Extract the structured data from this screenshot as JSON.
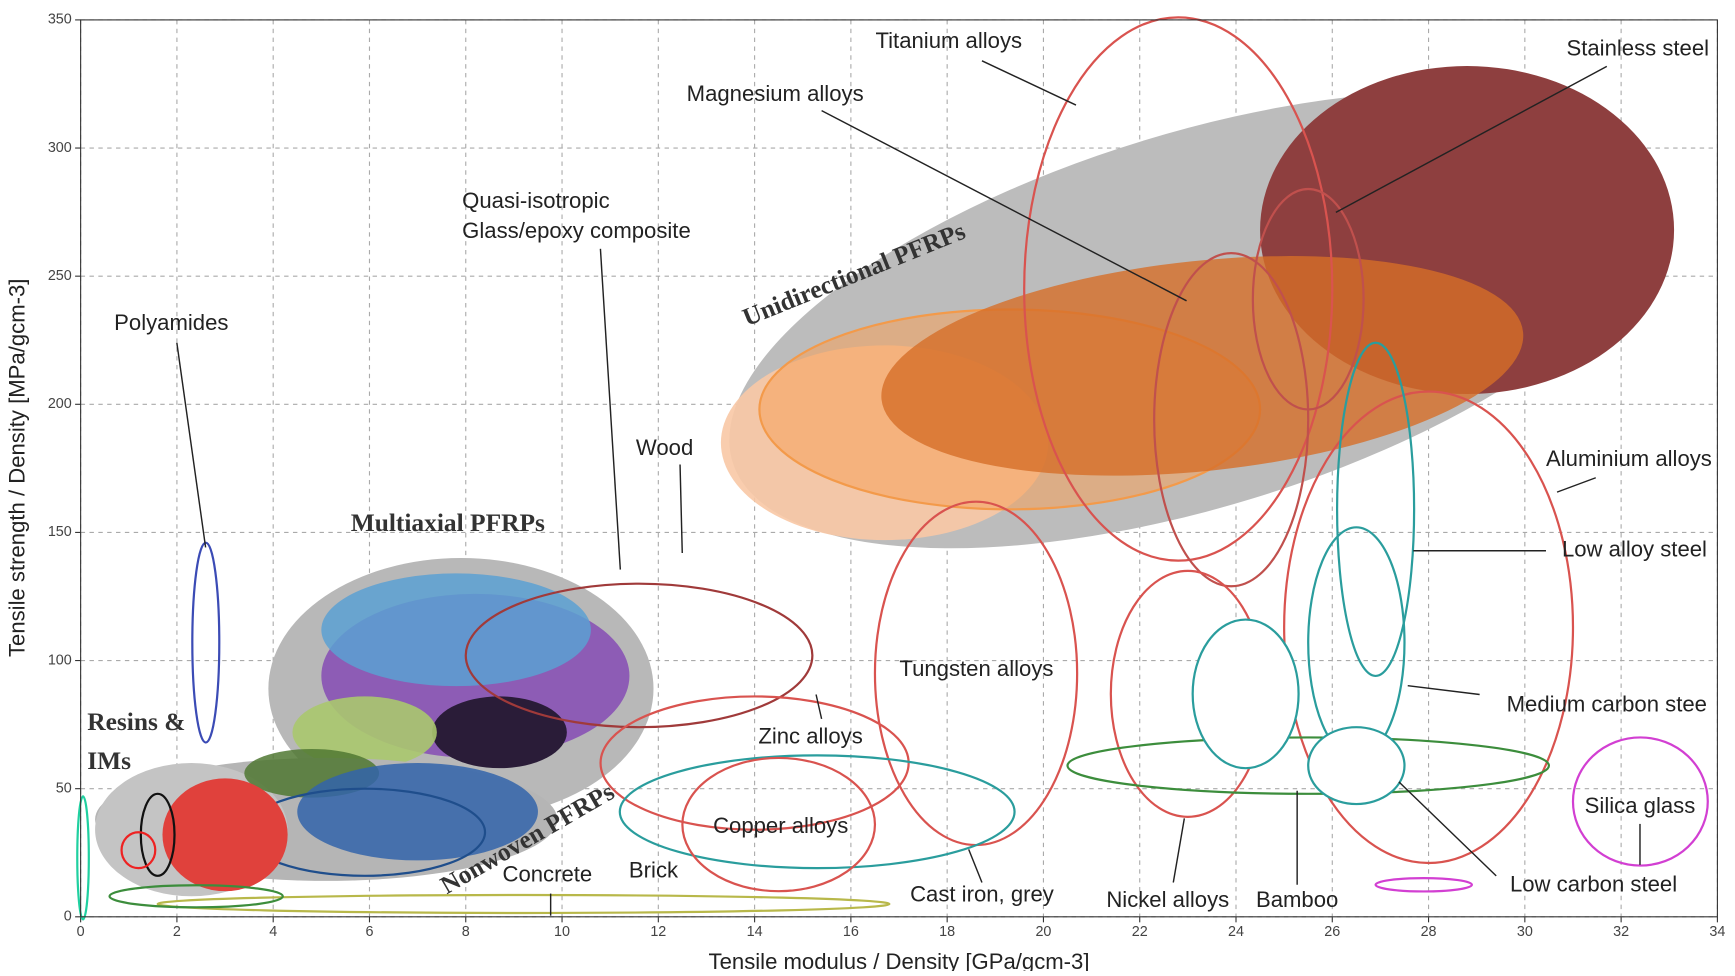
{
  "chart_data": {
    "type": "ellipse",
    "x_label": "Tensile modulus / Density [GPa/gcm-3]",
    "y_label": "Tensile strength / Density [MPa/gcm-3]",
    "xlim": [
      0,
      34
    ],
    "ylim": [
      0,
      350
    ],
    "xticks": [
      0,
      2,
      4,
      6,
      8,
      10,
      12,
      14,
      16,
      18,
      20,
      22,
      24,
      26,
      28,
      30,
      32,
      34
    ],
    "yticks": [
      0,
      50,
      100,
      150,
      200,
      250,
      300,
      350
    ],
    "grid": true,
    "regions": [
      {
        "x": 23.2,
        "y": 233,
        "rx": 10.1,
        "ry": 73,
        "angle": -17,
        "fill": "#bcbcbc",
        "stroke": "none"
      },
      {
        "x": 28.8,
        "y": 268,
        "rx": 4.3,
        "ry": 64,
        "angle": 0,
        "fill": "#8e3f3f",
        "stroke": "none"
      },
      {
        "x": 16.7,
        "y": 185,
        "rx": 3.4,
        "ry": 38,
        "angle": 0,
        "fill": "rgba(248,200,165,0.9)",
        "stroke": "none"
      },
      {
        "x": 19.3,
        "y": 198,
        "rx": 5.2,
        "ry": 39,
        "angle": 0,
        "fill": "rgba(246,160,90,0.55)",
        "stroke": "#f39a4a"
      },
      {
        "x": 23.3,
        "y": 215,
        "rx": 6.7,
        "ry": 41,
        "angle": -6,
        "fill": "rgba(214,110,40,0.8)",
        "stroke": "none"
      },
      {
        "x": 22.8,
        "y": 245,
        "rx": 3.2,
        "ry": 106,
        "angle": 0,
        "fill": "none",
        "stroke": "#d9534f"
      },
      {
        "x": 23.9,
        "y": 194,
        "rx": 1.6,
        "ry": 65,
        "angle": 0,
        "fill": "none",
        "stroke": "#c0504d"
      },
      {
        "x": 25.5,
        "y": 241,
        "rx": 1.15,
        "ry": 43,
        "angle": 0,
        "fill": "none",
        "stroke": "#c0504d"
      },
      {
        "x": 28,
        "y": 113,
        "rx": 3.0,
        "ry": 92,
        "angle": 0,
        "fill": "none",
        "stroke": "#d9534f"
      },
      {
        "x": 26.9,
        "y": 159,
        "rx": 0.8,
        "ry": 65,
        "angle": 0,
        "fill": "none",
        "stroke": "#2a9d9d"
      },
      {
        "x": 26.5,
        "y": 107,
        "rx": 1.0,
        "ry": 45,
        "angle": 0,
        "fill": "none",
        "stroke": "#2a9d9d"
      },
      {
        "x": 23,
        "y": 87,
        "rx": 1.6,
        "ry": 48,
        "angle": 0,
        "fill": "none",
        "stroke": "#d9534f"
      },
      {
        "x": 25.5,
        "y": 59,
        "rx": 5.0,
        "ry": 11,
        "angle": 0,
        "fill": "none",
        "stroke": "#3c8d3c"
      },
      {
        "x": 24.2,
        "y": 87,
        "rx": 1.1,
        "ry": 29,
        "angle": 0,
        "fill": "#ffffff",
        "stroke": "#2a9d9d"
      },
      {
        "x": 26.5,
        "y": 59,
        "rx": 1.0,
        "ry": 15,
        "angle": 0,
        "fill": "#ffffff",
        "stroke": "#2a9d9d"
      },
      {
        "x": 18.6,
        "y": 95,
        "rx": 2.1,
        "ry": 67,
        "angle": 0,
        "fill": "none",
        "stroke": "#d9534f"
      },
      {
        "x": 7.9,
        "y": 89,
        "rx": 4.0,
        "ry": 51,
        "angle": 0,
        "fill": "#b8b8b8",
        "stroke": "none"
      },
      {
        "x": 8.2,
        "y": 94,
        "rx": 3.2,
        "ry": 32,
        "angle": 0,
        "fill": "#8d5cb5",
        "stroke": "none"
      },
      {
        "x": 7.8,
        "y": 112,
        "rx": 2.8,
        "ry": 22,
        "angle": 0,
        "fill": "rgba(90,160,210,0.85)",
        "stroke": "none"
      },
      {
        "x": 8.7,
        "y": 72,
        "rx": 1.4,
        "ry": 14,
        "angle": 0,
        "fill": "#2a1c38",
        "stroke": "none"
      },
      {
        "x": 5.9,
        "y": 72,
        "rx": 1.5,
        "ry": 14,
        "angle": 0,
        "fill": "rgba(170,200,110,0.9)",
        "stroke": "none"
      },
      {
        "x": 11.6,
        "y": 102,
        "rx": 3.6,
        "ry": 28,
        "angle": 0,
        "fill": "none",
        "stroke": "#a03a3a"
      },
      {
        "x": 14,
        "y": 60,
        "rx": 3.2,
        "ry": 26,
        "angle": 0,
        "fill": "none",
        "stroke": "#d9534f"
      },
      {
        "x": 15.3,
        "y": 41,
        "rx": 4.1,
        "ry": 22,
        "angle": 0,
        "fill": "none",
        "stroke": "#2a9d9d"
      },
      {
        "x": 14.5,
        "y": 36,
        "rx": 2.0,
        "ry": 26,
        "angle": 0,
        "fill": "none",
        "stroke": "#d9534f"
      },
      {
        "x": 5.1,
        "y": 38,
        "rx": 4.8,
        "ry": 24,
        "angle": 0,
        "fill": "#b5b5b5",
        "stroke": "none"
      },
      {
        "x": 2.3,
        "y": 34,
        "rx": 2.0,
        "ry": 26,
        "angle": 0,
        "fill": "#c4c4c4",
        "stroke": "none"
      },
      {
        "x": 4.8,
        "y": 56,
        "rx": 1.4,
        "ry": 9.5,
        "angle": 0,
        "fill": "rgba(80,120,50,0.85)",
        "stroke": "none"
      },
      {
        "x": 7.0,
        "y": 41,
        "rx": 2.5,
        "ry": 19,
        "angle": 0,
        "fill": "rgba(50,100,170,0.85)",
        "stroke": "none"
      },
      {
        "x": 5.9,
        "y": 33,
        "rx": 2.5,
        "ry": 17,
        "angle": 0,
        "fill": "none",
        "stroke": "#1f4e8c"
      },
      {
        "x": 3.0,
        "y": 32,
        "rx": 1.3,
        "ry": 22,
        "angle": 0,
        "fill": "#e0413c",
        "stroke": "none"
      },
      {
        "x": 2.6,
        "y": 107,
        "rx": 0.28,
        "ry": 39,
        "angle": 0,
        "fill": "none",
        "stroke": "#3b4bb5"
      },
      {
        "x": 1.6,
        "y": 32,
        "rx": 0.35,
        "ry": 16,
        "angle": 0,
        "fill": "none",
        "stroke": "#111111"
      },
      {
        "x": 1.2,
        "y": 26,
        "rx": 0.35,
        "ry": 7,
        "angle": 0,
        "fill": "none",
        "stroke": "#ee2222"
      },
      {
        "x": 32.4,
        "y": 45,
        "rx": 1.4,
        "ry": 25,
        "angle": 0,
        "fill": "none",
        "stroke": "#d23fd2"
      },
      {
        "x": 27.9,
        "y": 12.5,
        "rx": 1.0,
        "ry": 2.6,
        "angle": 0,
        "fill": "none",
        "stroke": "#d23fd2"
      },
      {
        "x": 9.2,
        "y": 5,
        "rx": 7.6,
        "ry": 3.5,
        "angle": 0,
        "fill": "none",
        "stroke": "#b8b84a"
      },
      {
        "x": 2.4,
        "y": 8,
        "rx": 1.8,
        "ry": 4.3,
        "angle": 0,
        "fill": "none",
        "stroke": "#3c8d3c"
      },
      {
        "x": 0.05,
        "y": 23,
        "rx": 0.12,
        "ry": 24,
        "angle": 0,
        "fill": "none",
        "stroke": "#20d0a0"
      }
    ],
    "annotations": [
      "Titanium alloys",
      "Magnesium alloys",
      "Stainless steel",
      "Quasi-isotropic",
      "Glass/epoxy composite",
      "Polyamides",
      "Wood",
      "Unidirectional PFRPs",
      "Multiaxial PFRPs",
      "Resins &",
      "IMs",
      "Nonwoven PFRPs",
      "Aluminium alloys",
      "Low alloy steel",
      "Tungsten alloys",
      "Medium carbon stee",
      "Zinc alloys",
      "Copper alloys",
      "Silica glass",
      "Low carbon steel",
      "Concrete",
      "Brick",
      "Cast iron, grey",
      "Nickel alloys",
      "Bamboo"
    ]
  }
}
